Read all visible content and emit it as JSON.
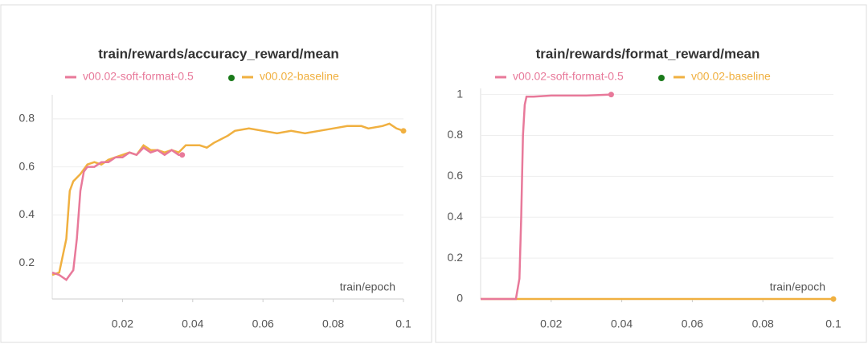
{
  "chart_data": [
    {
      "type": "line",
      "title": "train/rewards/accuracy_reward/mean",
      "x_label": "train/epoch",
      "xlim": [
        0,
        0.1
      ],
      "xticks": [
        0.02,
        0.04,
        0.06,
        0.08,
        0.1
      ],
      "ylim": [
        0.05,
        0.9
      ],
      "yticks": [
        0.2,
        0.4,
        0.6,
        0.8
      ],
      "grid": true,
      "series": [
        {
          "name": "v00.02-soft-format-0.5",
          "color": "#e8799a",
          "x": [
            0,
            0.002,
            0.004,
            0.006,
            0.007,
            0.008,
            0.009,
            0.01,
            0.012,
            0.014,
            0.016,
            0.018,
            0.02,
            0.022,
            0.024,
            0.026,
            0.028,
            0.03,
            0.032,
            0.034,
            0.036,
            0.037
          ],
          "values": [
            0.16,
            0.15,
            0.13,
            0.17,
            0.3,
            0.5,
            0.58,
            0.6,
            0.6,
            0.62,
            0.62,
            0.64,
            0.64,
            0.66,
            0.65,
            0.68,
            0.66,
            0.67,
            0.65,
            0.67,
            0.65,
            0.65
          ]
        },
        {
          "name": "v00.02-baseline",
          "color": "#f0b040",
          "x": [
            0,
            0.002,
            0.004,
            0.005,
            0.006,
            0.008,
            0.01,
            0.012,
            0.014,
            0.016,
            0.018,
            0.02,
            0.022,
            0.024,
            0.026,
            0.028,
            0.03,
            0.032,
            0.034,
            0.036,
            0.038,
            0.042,
            0.044,
            0.046,
            0.05,
            0.052,
            0.056,
            0.06,
            0.064,
            0.068,
            0.072,
            0.076,
            0.08,
            0.084,
            0.088,
            0.09,
            0.094,
            0.096,
            0.098,
            0.1
          ],
          "values": [
            0.15,
            0.16,
            0.3,
            0.5,
            0.54,
            0.57,
            0.61,
            0.62,
            0.61,
            0.63,
            0.64,
            0.65,
            0.66,
            0.65,
            0.69,
            0.67,
            0.67,
            0.66,
            0.67,
            0.66,
            0.69,
            0.69,
            0.68,
            0.7,
            0.73,
            0.75,
            0.76,
            0.75,
            0.74,
            0.75,
            0.74,
            0.75,
            0.76,
            0.77,
            0.77,
            0.76,
            0.77,
            0.78,
            0.76,
            0.75
          ]
        }
      ]
    },
    {
      "type": "line",
      "title": "train/rewards/format_reward/mean",
      "x_label": "train/epoch",
      "xlim": [
        0,
        0.1
      ],
      "xticks": [
        0.02,
        0.04,
        0.06,
        0.08,
        0.1
      ],
      "ylim": [
        0,
        1.03
      ],
      "yticks": [
        0,
        0.2,
        0.4,
        0.6,
        0.8,
        1
      ],
      "grid": true,
      "series": [
        {
          "name": "v00.02-soft-format-0.5",
          "color": "#e8799a",
          "x": [
            0,
            0.01,
            0.011,
            0.0115,
            0.012,
            0.0125,
            0.013,
            0.015,
            0.02,
            0.03,
            0.037
          ],
          "values": [
            0,
            0,
            0.1,
            0.4,
            0.8,
            0.95,
            0.99,
            0.99,
            0.995,
            0.995,
            1
          ]
        },
        {
          "name": "v00.02-baseline",
          "color": "#f0b040",
          "x": [
            0,
            0.1
          ],
          "values": [
            0,
            0
          ]
        }
      ]
    }
  ]
}
